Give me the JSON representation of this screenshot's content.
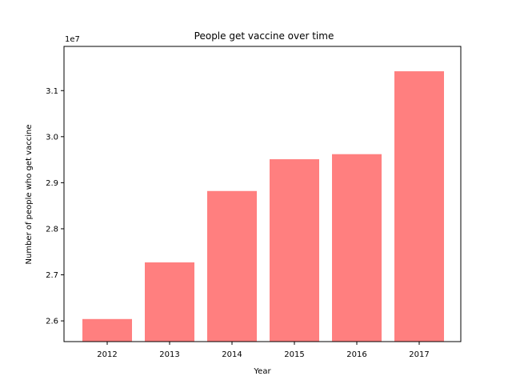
{
  "chart_data": {
    "type": "bar",
    "title": "People get vaccine over time",
    "xlabel": "Year",
    "ylabel": "Number of people who get vaccine",
    "offset_label": "1e7",
    "categories": [
      "2012",
      "2013",
      "2014",
      "2015",
      "2016",
      "2017"
    ],
    "values": [
      26040000,
      27270000,
      28820000,
      29510000,
      29620000,
      31420000
    ],
    "ylim": [
      25550000,
      31960000
    ],
    "yticks": [
      26000000,
      27000000,
      28000000,
      29000000,
      30000000,
      31000000
    ],
    "ytick_labels": [
      "2.6",
      "2.7",
      "2.8",
      "2.9",
      "3.0",
      "3.1"
    ],
    "bar_color": "#ff7f7f",
    "grid": false,
    "legend": "none"
  }
}
